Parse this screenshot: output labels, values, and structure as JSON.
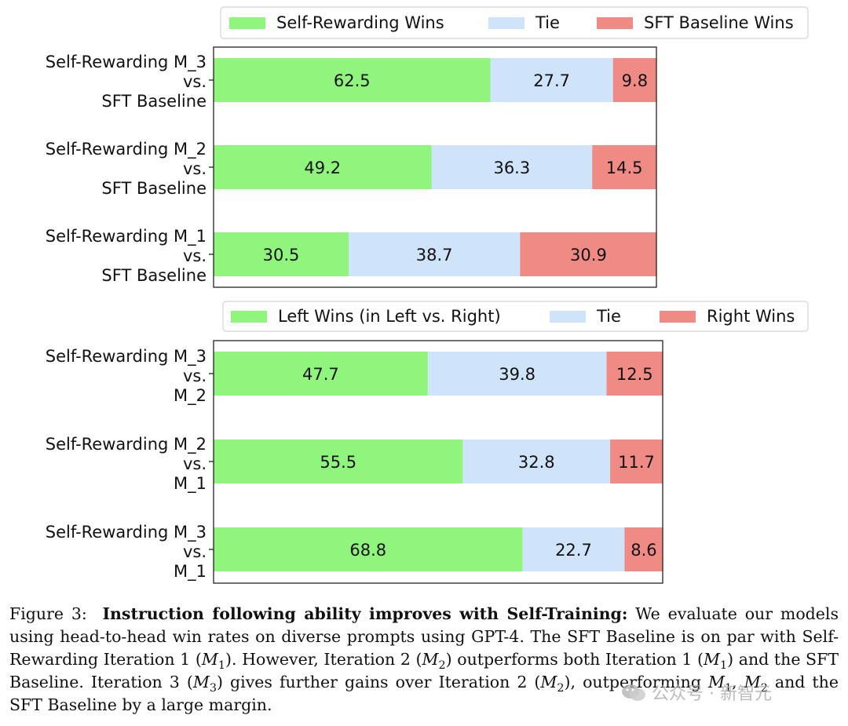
{
  "chart_data": [
    {
      "type": "bar",
      "orientation": "horizontal",
      "stacked": true,
      "legend": [
        "Self-Rewarding Wins",
        "Tie",
        "SFT Baseline Wins"
      ],
      "legend_position": "top",
      "categories": [
        [
          "Self-Rewarding M_3",
          "vs.",
          "SFT Baseline"
        ],
        [
          "Self-Rewarding M_2",
          "vs.",
          "SFT Baseline"
        ],
        [
          "Self-Rewarding M_1",
          "vs.",
          "SFT Baseline"
        ]
      ],
      "series": [
        {
          "name": "Self-Rewarding Wins",
          "color": "#90f57c",
          "values": [
            62.5,
            49.2,
            30.5
          ]
        },
        {
          "name": "Tie",
          "color": "#cfe3fa",
          "values": [
            27.7,
            36.3,
            38.7
          ]
        },
        {
          "name": "SFT Baseline Wins",
          "color": "#f08a84",
          "values": [
            9.8,
            14.5,
            30.9
          ]
        }
      ],
      "xlim": [
        0,
        100
      ]
    },
    {
      "type": "bar",
      "orientation": "horizontal",
      "stacked": true,
      "legend": [
        "Left Wins (in Left vs. Right)",
        "Tie",
        "Right Wins"
      ],
      "legend_position": "top",
      "categories": [
        [
          "Self-Rewarding M_3",
          "vs.",
          "M_2"
        ],
        [
          "Self-Rewarding M_2",
          "vs.",
          "M_1"
        ],
        [
          "Self-Rewarding M_3",
          "vs.",
          "M_1"
        ]
      ],
      "series": [
        {
          "name": "Left Wins (in Left vs. Right)",
          "color": "#90f57c",
          "values": [
            47.7,
            55.5,
            68.8
          ]
        },
        {
          "name": "Tie",
          "color": "#cfe3fa",
          "values": [
            39.8,
            32.8,
            22.7
          ]
        },
        {
          "name": "Right Wins",
          "color": "#f08a84",
          "values": [
            12.5,
            11.7,
            8.6
          ]
        }
      ],
      "xlim": [
        0,
        100
      ]
    }
  ],
  "caption": {
    "prefix": "Figure 3:",
    "title": "Instruction following ability improves with Self-Training:",
    "t1": "We evaluate our models using head-to-head win rates on diverse prompts using GPT-4. The SFT Baseline is on par with Self-Rewarding Iteration 1 (",
    "m1": "M",
    "m1_sub": "1",
    "t2": "). However, Iteration 2 (",
    "m2": "M",
    "m2_sub": "2",
    "t3": ") outperforms both Iteration 1 (",
    "m3": "M",
    "m3_sub": "1",
    "t4": ") and the SFT Baseline. Iteration 3 (",
    "m4": "M",
    "m4_sub": "3",
    "t5": ") gives further gains over Iteration 2 (",
    "m5": "M",
    "m5_sub": "2",
    "t6": "), outperforming ",
    "m6": "M",
    "m6_sub": "1",
    "t7": ", ",
    "m7": "M",
    "m7_sub": "2",
    "t8": " and the SFT Baseline by a large margin."
  },
  "watermark": {
    "text": "公众号 · 新智元",
    "icon": "wechat-icon"
  }
}
